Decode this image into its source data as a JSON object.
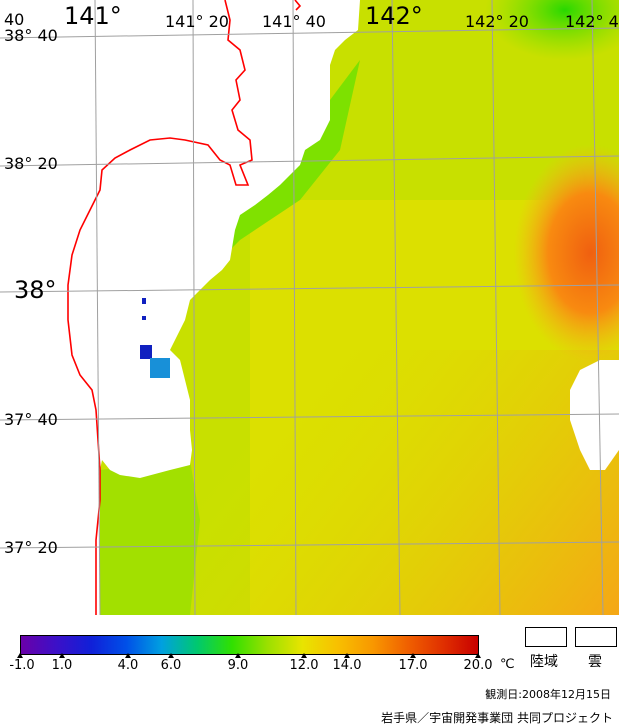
{
  "map": {
    "lon_labels": [
      {
        "text": "141°",
        "size": "big"
      },
      {
        "text": "141° 20",
        "size": "small"
      },
      {
        "text": "141° 40",
        "size": "small"
      },
      {
        "text": "142°",
        "size": "big"
      },
      {
        "text": "142° 20",
        "size": "small"
      },
      {
        "text": "142° 4",
        "size": "small"
      }
    ],
    "lat_labels": [
      {
        "text": "38° 40",
        "size": "small"
      },
      {
        "text": "38° 20",
        "size": "small"
      },
      {
        "text": "38°",
        "size": "big"
      },
      {
        "text": "37° 40",
        "size": "small"
      },
      {
        "text": "37° 20",
        "size": "small"
      }
    ],
    "corner_label": "40",
    "colors": {
      "land": "#ffffff",
      "coastline": "#ff0000",
      "grid": "#a0a0a0"
    }
  },
  "legend": {
    "ticks": [
      "-1.0",
      "1.0",
      "4.0",
      "6.0",
      "9.0",
      "12.0",
      "14.0",
      "17.0",
      "20.0"
    ],
    "unit": "℃",
    "land_label": "陸域",
    "cloud_label": "雲",
    "observation_date": "観測日:2008年12月15日",
    "credit": "岩手県／宇宙開発事業団 共同プロジェクト",
    "gradient": [
      "#6a00a8",
      "#3c10c8",
      "#1020d8",
      "#0050e8",
      "#00a0e0",
      "#00c870",
      "#30e000",
      "#9ae000",
      "#e8e400",
      "#f8c000",
      "#f89800",
      "#f06000",
      "#e03000",
      "#c80000"
    ]
  }
}
